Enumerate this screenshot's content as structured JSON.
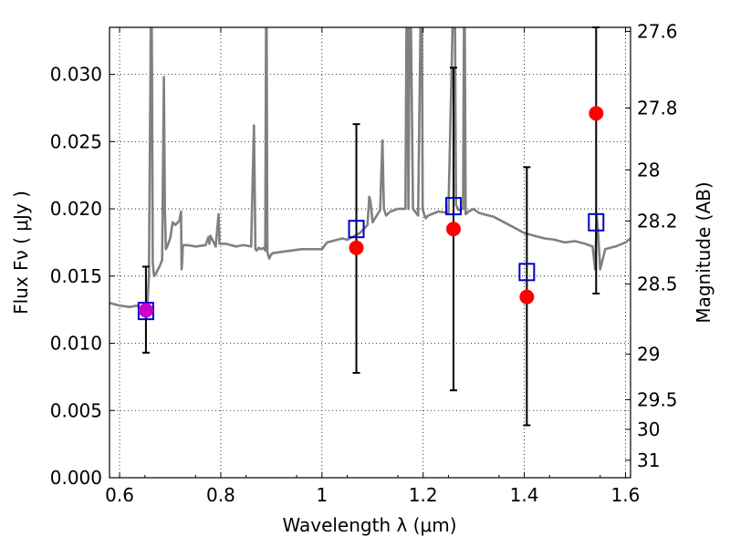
{
  "chart_data": {
    "type": "scatter",
    "xlabel": "Wavelength  λ (μm)",
    "ylabel": "Flux  Fν  ( μJy )",
    "ylabel_right": "Magnitude (AB)",
    "xlim": [
      0.58,
      1.61
    ],
    "ylim": [
      0.0,
      0.0335
    ],
    "grid": true,
    "x_ticks": [
      0.6,
      0.8,
      1.0,
      1.2,
      1.4,
      1.6
    ],
    "x_tick_labels": [
      "0.6",
      "0.8",
      "1",
      "1.2",
      "1.4",
      "1.6"
    ],
    "y_ticks": [
      0.0,
      0.005,
      0.01,
      0.015,
      0.02,
      0.025,
      0.03
    ],
    "y_tick_labels": [
      "0.000",
      "0.005",
      "0.010",
      "0.015",
      "0.020",
      "0.025",
      "0.030"
    ],
    "right_ticks": [
      {
        "label": "27.6",
        "flux": 0.0332
      },
      {
        "label": "27.8",
        "flux": 0.0275
      },
      {
        "label": "28",
        "flux": 0.0229
      },
      {
        "label": "28.2",
        "flux": 0.0191
      },
      {
        "label": "28.5",
        "flux": 0.0144
      },
      {
        "label": "29",
        "flux": 0.0092
      },
      {
        "label": "29.5",
        "flux": 0.0058
      },
      {
        "label": "30",
        "flux": 0.0036
      },
      {
        "label": "31",
        "flux": 0.0013
      }
    ],
    "series": [
      {
        "kind": "observed",
        "color": "#ff0000",
        "points": [
          {
            "x": 0.652,
            "y": 0.01245,
            "ylo": 0.0093,
            "yhi": 0.0157
          },
          {
            "x": 1.068,
            "y": 0.0171,
            "ylo": 0.0078,
            "yhi": 0.0263
          },
          {
            "x": 1.26,
            "y": 0.0185,
            "ylo": 0.0065,
            "yhi": 0.0305
          },
          {
            "x": 1.405,
            "y": 0.01345,
            "ylo": 0.0039,
            "yhi": 0.0231
          },
          {
            "x": 1.542,
            "y": 0.0271,
            "ylo": 0.0137,
            "yhi": 0.0335
          }
        ]
      },
      {
        "kind": "model",
        "color": "#0000cc",
        "points": [
          {
            "x": 0.652,
            "y": 0.0124
          },
          {
            "x": 1.068,
            "y": 0.0185
          },
          {
            "x": 1.26,
            "y": 0.0202
          },
          {
            "x": 1.405,
            "y": 0.0153
          },
          {
            "x": 1.542,
            "y": 0.019
          }
        ]
      },
      {
        "kind": "template",
        "color": "#808080",
        "x": [
          0.58,
          0.6,
          0.62,
          0.635,
          0.645,
          0.65,
          0.655,
          0.658,
          0.661,
          0.6625,
          0.664,
          0.6655,
          0.668,
          0.672,
          0.676,
          0.68,
          0.684,
          0.6875,
          0.6895,
          0.6915,
          0.694,
          0.697,
          0.7,
          0.705,
          0.71,
          0.718,
          0.7215,
          0.7225,
          0.7235,
          0.725,
          0.735,
          0.75,
          0.77,
          0.7755,
          0.7775,
          0.7795,
          0.79,
          0.793,
          0.7955,
          0.7975,
          0.81,
          0.83,
          0.845,
          0.86,
          0.8655,
          0.8685,
          0.8715,
          0.875,
          0.88,
          0.885,
          0.888,
          0.89,
          0.892,
          0.894,
          0.896,
          0.898,
          0.902,
          0.92,
          0.94,
          0.96,
          0.98,
          1.0,
          1.01,
          1.02,
          1.03,
          1.04,
          1.05,
          1.055,
          1.065,
          1.075,
          1.085,
          1.09,
          1.0935,
          1.096,
          1.1,
          1.105,
          1.11,
          1.115,
          1.1195,
          1.1225,
          1.127,
          1.135,
          1.15,
          1.165,
          1.168,
          1.171,
          1.174,
          1.18,
          1.19,
          1.197,
          1.199,
          1.202,
          1.205,
          1.21,
          1.23,
          1.25,
          1.262,
          1.265,
          1.27,
          1.279,
          1.2815,
          1.284,
          1.29,
          1.3,
          1.31,
          1.32,
          1.34,
          1.36,
          1.38,
          1.4,
          1.42,
          1.44,
          1.46,
          1.48,
          1.5,
          1.52,
          1.535,
          1.54,
          1.543,
          1.546,
          1.55,
          1.56,
          1.58,
          1.6,
          1.61
        ],
        "y": [
          0.013,
          0.0128,
          0.0127,
          0.0128,
          0.0124,
          0.0126,
          0.013,
          0.015,
          0.03,
          0.04,
          0.03,
          0.016,
          0.015,
          0.0152,
          0.0155,
          0.0158,
          0.0162,
          0.0298,
          0.02,
          0.017,
          0.0172,
          0.0175,
          0.0178,
          0.019,
          0.0188,
          0.0191,
          0.0198,
          0.0155,
          0.016,
          0.0173,
          0.0173,
          0.0172,
          0.0173,
          0.0179,
          0.0174,
          0.018,
          0.0172,
          0.0185,
          0.0196,
          0.0174,
          0.0174,
          0.0172,
          0.0173,
          0.0172,
          0.0262,
          0.017,
          0.0169,
          0.0171,
          0.017,
          0.0171,
          0.0169,
          0.04,
          0.0168,
          0.0165,
          0.0163,
          0.0165,
          0.0167,
          0.0168,
          0.0169,
          0.017,
          0.017,
          0.017,
          0.0175,
          0.0176,
          0.0177,
          0.0178,
          0.0177,
          0.0178,
          0.018,
          0.0182,
          0.0186,
          0.0188,
          0.0209,
          0.0205,
          0.019,
          0.0193,
          0.0196,
          0.0199,
          0.0251,
          0.02,
          0.0195,
          0.0198,
          0.02,
          0.02,
          0.04,
          0.02,
          0.04,
          0.02,
          0.0195,
          0.04,
          0.02,
          0.0196,
          0.0193,
          0.0195,
          0.0198,
          0.0197,
          0.04,
          0.0203,
          0.0199,
          0.02,
          0.04,
          0.0196,
          0.0198,
          0.02,
          0.0197,
          0.0196,
          0.0194,
          0.019,
          0.0186,
          0.0182,
          0.018,
          0.0178,
          0.0177,
          0.0175,
          0.0176,
          0.0174,
          0.0172,
          0.0155,
          0.0195,
          0.0182,
          0.0155,
          0.017,
          0.0172,
          0.0175,
          0.0178
        ]
      }
    ]
  }
}
